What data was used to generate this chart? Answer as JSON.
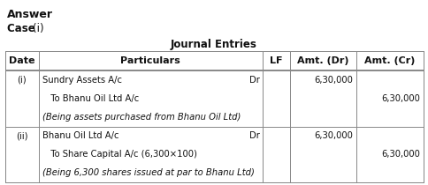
{
  "answer_text": "Answer",
  "case_bold": "Case ",
  "case_normal": "(i)",
  "table_title": "Journal Entries",
  "headers": [
    "Date",
    "Particulars",
    "LF",
    "Amt. (Dr)",
    "Amt. (Cr)"
  ],
  "rows": [
    {
      "date": "(i)",
      "lines": [
        {
          "text": "Sundry Assets A/c",
          "indent": false,
          "dr": true,
          "italic": false
        },
        {
          "text": "   To Bhanu Oil Ltd A/c",
          "indent": true,
          "dr": false,
          "italic": false
        },
        {
          "text": "(Being assets purchased from Bhanu Oil Ltd)",
          "indent": false,
          "dr": false,
          "italic": true
        }
      ],
      "amt_dr": "6,30,000",
      "amt_cr": "6,30,000",
      "dr_line": 0,
      "cr_line": 1
    },
    {
      "date": "(ii)",
      "lines": [
        {
          "text": "Bhanu Oil Ltd A/c",
          "indent": false,
          "dr": true,
          "italic": false
        },
        {
          "text": "   To Share Capital A/c (6,300×100)",
          "indent": true,
          "dr": false,
          "italic": false
        },
        {
          "text": "(Being 6,300 shares issued at par to Bhanu Ltd)",
          "indent": false,
          "dr": false,
          "italic": true
        }
      ],
      "amt_dr": "6,30,000",
      "amt_cr": "6,30,000",
      "dr_line": 0,
      "cr_line": 1
    }
  ],
  "bg_color": "#ffffff",
  "text_color": "#111111",
  "border_color": "#888888",
  "answer_fontsize": 9,
  "case_fontsize": 8.5,
  "title_fontsize": 8.5,
  "header_fontsize": 8,
  "body_fontsize": 7.2
}
